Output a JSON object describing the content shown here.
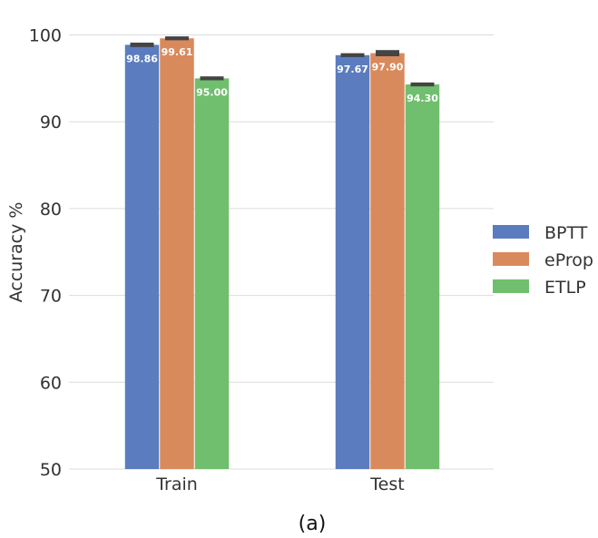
{
  "chart_data": {
    "type": "bar",
    "categories": [
      "Train",
      "Test"
    ],
    "series": [
      {
        "name": "BPTT",
        "values": [
          98.86,
          97.67
        ],
        "error": [
          0.15,
          0.12
        ],
        "color": "#5b7cbf"
      },
      {
        "name": "eProp",
        "values": [
          99.61,
          97.9
        ],
        "error": [
          0.12,
          0.25
        ],
        "color": "#d98a5c"
      },
      {
        "name": "ETLP",
        "values": [
          95.0,
          94.3
        ],
        "error": [
          0.12,
          0.12
        ],
        "color": "#70bf6e"
      }
    ],
    "value_labels": [
      [
        "98.86",
        "97.67"
      ],
      [
        "99.61",
        "97.90"
      ],
      [
        "95.00",
        "94.30"
      ]
    ],
    "ylabel": "Accuracy %",
    "xlabel": "",
    "ylim": [
      50,
      101
    ],
    "yticks": [
      50,
      60,
      70,
      80,
      90,
      100
    ],
    "grid": true,
    "legend_position": "right"
  },
  "caption": "(a)"
}
